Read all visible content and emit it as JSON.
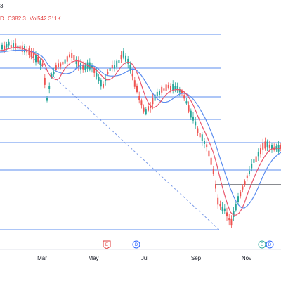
{
  "header": {
    "top_value": "3",
    "ohlc_close": "C382.3",
    "volume": "Vol542.311K",
    "close_prefix": "D"
  },
  "x_axis": {
    "labels": [
      "Mar",
      "May",
      "Jul",
      "Sep",
      "Nov"
    ]
  },
  "markers": [
    {
      "letter": "E",
      "kind": "earnings",
      "color": "#e03a3a"
    },
    {
      "letter": "D",
      "kind": "dividend",
      "color": "#2962ff"
    },
    {
      "letter": "E",
      "kind": "earnings",
      "color": "#26a69a"
    },
    {
      "letter": "D",
      "kind": "dividend",
      "color": "#2962ff"
    }
  ],
  "colors": {
    "up": "#26a69a",
    "down": "#ef5350",
    "ma_fast": "#e9546b",
    "ma_slow": "#5b8def",
    "fib_line": "#5b8def",
    "trend_dashed": "#7b9be8",
    "support": "#131722"
  }
}
